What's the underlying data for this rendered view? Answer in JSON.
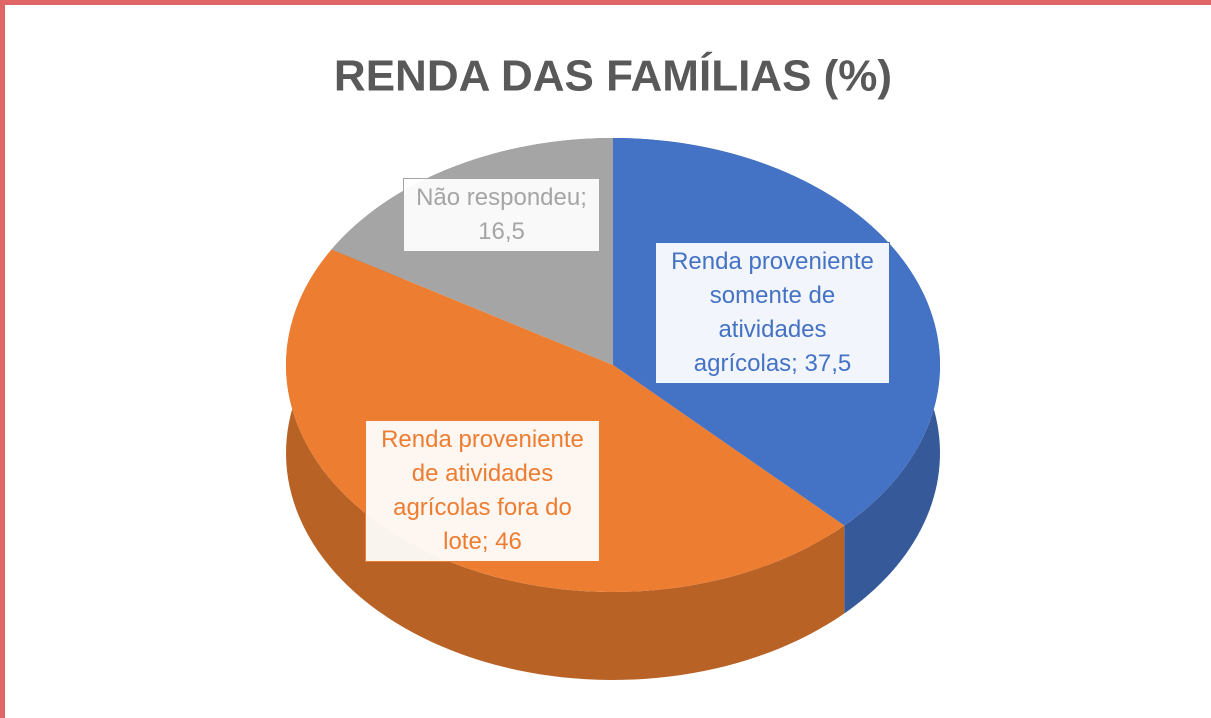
{
  "chart_data": {
    "type": "pie",
    "title": "RENDA DAS FAMÍLIAS (%)",
    "values": [
      37.5,
      46,
      16.5
    ],
    "value_labels": [
      "Renda proveniente somente de atividades agrícolas; 37,5",
      "Renda proveniente de atividades agrícolas fora do lote; 46",
      "Não respondeu; 16,5"
    ],
    "colors": [
      "#4472c4",
      "#ed7d31",
      "#a5a5a5"
    ]
  }
}
